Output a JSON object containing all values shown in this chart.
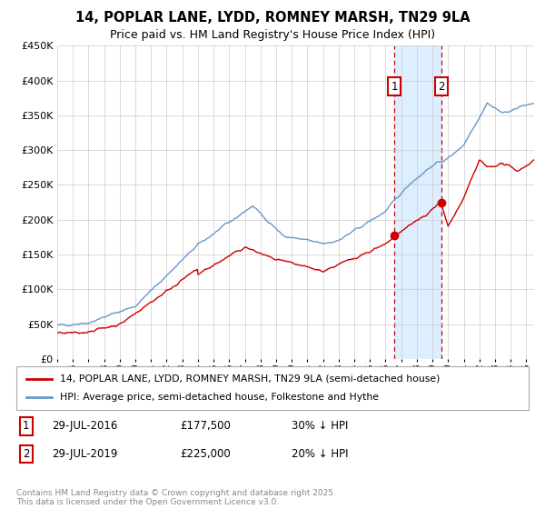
{
  "title": "14, POPLAR LANE, LYDD, ROMNEY MARSH, TN29 9LA",
  "subtitle": "Price paid vs. HM Land Registry's House Price Index (HPI)",
  "ylim": [
    0,
    450000
  ],
  "xlim_start": 1995.0,
  "xlim_end": 2025.5,
  "yticks": [
    0,
    50000,
    100000,
    150000,
    200000,
    250000,
    300000,
    350000,
    400000,
    450000
  ],
  "ytick_labels": [
    "£0",
    "£50K",
    "£100K",
    "£150K",
    "£200K",
    "£250K",
    "£300K",
    "£350K",
    "£400K",
    "£450K"
  ],
  "xtick_years": [
    1995,
    1996,
    1997,
    1998,
    1999,
    2000,
    2001,
    2002,
    2003,
    2004,
    2005,
    2006,
    2007,
    2008,
    2009,
    2010,
    2011,
    2012,
    2013,
    2014,
    2015,
    2016,
    2017,
    2018,
    2019,
    2020,
    2021,
    2022,
    2023,
    2024,
    2025
  ],
  "sale1_x": 2016.57,
  "sale1_y": 177500,
  "sale1_label": "1",
  "sale2_x": 2019.57,
  "sale2_y": 225000,
  "sale2_label": "2",
  "sale_color": "#cc0000",
  "hpi_color": "#6699cc",
  "shaded_color": "#ddeeff",
  "vline_color": "#cc0000",
  "legend_property_label": "14, POPLAR LANE, LYDD, ROMNEY MARSH, TN29 9LA (semi-detached house)",
  "legend_hpi_label": "HPI: Average price, semi-detached house, Folkestone and Hythe",
  "table_rows": [
    {
      "num": "1",
      "date": "29-JUL-2016",
      "price": "£177,500",
      "hpi": "30% ↓ HPI"
    },
    {
      "num": "2",
      "date": "29-JUL-2019",
      "price": "£225,000",
      "hpi": "20% ↓ HPI"
    }
  ],
  "footer": "Contains HM Land Registry data © Crown copyright and database right 2025.\nThis data is licensed under the Open Government Licence v3.0.",
  "background_color": "#ffffff",
  "grid_color": "#cccccc",
  "title_fontsize": 10.5,
  "subtitle_fontsize": 9
}
